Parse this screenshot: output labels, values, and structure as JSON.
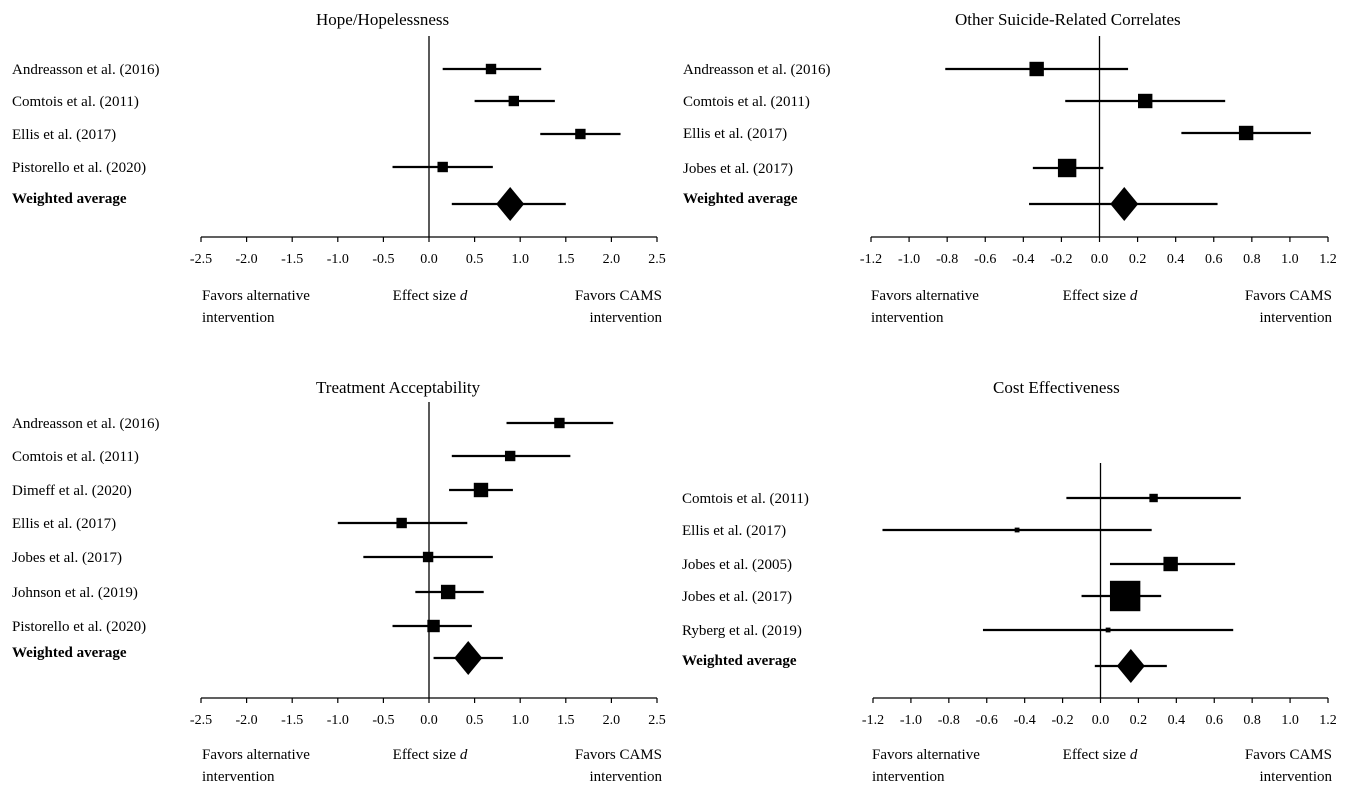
{
  "chart_data": [
    {
      "type": "forest",
      "title": "Hope/Hopelessness",
      "xlim": [
        -2.5,
        2.5
      ],
      "xticks": [
        "-2.5",
        "-2.0",
        "-1.5",
        "-1.0",
        "-0.5",
        "0.0",
        "0.5",
        "1.0",
        "1.5",
        "2.0",
        "2.5"
      ],
      "labels": {
        "left": "Favors alternative intervention",
        "center": "Effect size",
        "center_italic": "d",
        "right": "Favors CAMS intervention"
      },
      "studies": [
        {
          "name": "Andreasson et al. (2016)",
          "d": 0.68,
          "lo": 0.15,
          "hi": 1.23,
          "weight": 2
        },
        {
          "name": "Comtois et al. (2011)",
          "d": 0.93,
          "lo": 0.5,
          "hi": 1.38,
          "weight": 2
        },
        {
          "name": "Ellis et al. (2017)",
          "d": 1.66,
          "lo": 1.22,
          "hi": 2.1,
          "weight": 2
        },
        {
          "name": "Pistorello et al. (2020)",
          "d": 0.15,
          "lo": -0.4,
          "hi": 0.7,
          "weight": 2
        }
      ],
      "pooled": {
        "name": "Weighted average",
        "d": 0.89,
        "lo": 0.25,
        "hi": 1.5
      }
    },
    {
      "type": "forest",
      "title": "Other Suicide-Related Correlates",
      "xlim": [
        -1.2,
        1.2
      ],
      "xticks": [
        "-1.2",
        "-1.0",
        "-0.8",
        "-0.6",
        "-0.4",
        "-0.2",
        "0.0",
        "0.2",
        "0.4",
        "0.6",
        "0.8",
        "1.0",
        "1.2"
      ],
      "labels": {
        "left": "Favors alternative intervention",
        "center": "Effect size",
        "center_italic": "d",
        "right": "Favors CAMS intervention"
      },
      "studies": [
        {
          "name": "Andreasson et al. (2016)",
          "d": -0.33,
          "lo": -0.81,
          "hi": 0.15,
          "weight": 3
        },
        {
          "name": "Comtois et al. (2011)",
          "d": 0.24,
          "lo": -0.18,
          "hi": 0.66,
          "weight": 3
        },
        {
          "name": "Ellis et al. (2017)",
          "d": 0.77,
          "lo": 0.43,
          "hi": 1.11,
          "weight": 3
        },
        {
          "name": "Jobes et al. (2017)",
          "d": -0.17,
          "lo": -0.35,
          "hi": 0.02,
          "weight": 4
        }
      ],
      "pooled": {
        "name": "Weighted average",
        "d": 0.13,
        "lo": -0.37,
        "hi": 0.62
      }
    },
    {
      "type": "forest",
      "title": "Treatment Acceptability",
      "xlim": [
        -2.5,
        2.5
      ],
      "xticks": [
        "-2.5",
        "-2.0",
        "-1.5",
        "-1.0",
        "-0.5",
        "0.0",
        "0.5",
        "1.0",
        "1.5",
        "2.0",
        "2.5"
      ],
      "labels": {
        "left": "Favors alternative intervention",
        "center": "Effect size",
        "center_italic": "d",
        "right": "Favors CAMS intervention"
      },
      "studies": [
        {
          "name": "Andreasson et al. (2016)",
          "d": 1.43,
          "lo": 0.85,
          "hi": 2.02,
          "weight": 2
        },
        {
          "name": "Comtois et al. (2011)",
          "d": 0.89,
          "lo": 0.25,
          "hi": 1.55,
          "weight": 2
        },
        {
          "name": "Dimeff et al. (2020)",
          "d": 0.57,
          "lo": 0.22,
          "hi": 0.92,
          "weight": 3
        },
        {
          "name": "Ellis et al. (2017)",
          "d": -0.3,
          "lo": -1.0,
          "hi": 0.42,
          "weight": 2
        },
        {
          "name": "Jobes et al. (2017)",
          "d": -0.01,
          "lo": -0.72,
          "hi": 0.7,
          "weight": 2
        },
        {
          "name": "Johnson et al. (2019)",
          "d": 0.21,
          "lo": -0.15,
          "hi": 0.6,
          "weight": 3
        },
        {
          "name": "Pistorello et al. (2020)",
          "d": 0.05,
          "lo": -0.4,
          "hi": 0.47,
          "weight": 2.5
        }
      ],
      "pooled": {
        "name": "Weighted average",
        "d": 0.43,
        "lo": 0.05,
        "hi": 0.81
      }
    },
    {
      "type": "forest",
      "title": "Cost Effectiveness",
      "xlim": [
        -1.2,
        1.2
      ],
      "xticks": [
        "-1.2",
        "-1.0",
        "-0.8",
        "-0.6",
        "-0.4",
        "-0.2",
        "0.0",
        "0.2",
        "0.4",
        "0.6",
        "0.8",
        "1.0",
        "1.2"
      ],
      "labels": {
        "left": "Favors alternative intervention",
        "center": "Effect size",
        "center_italic": "d",
        "right": "Favors CAMS intervention"
      },
      "studies": [
        {
          "name": "Comtois et al. (2011)",
          "d": 0.28,
          "lo": -0.18,
          "hi": 0.74,
          "weight": 1.5
        },
        {
          "name": "Ellis et al. (2017)",
          "d": -0.44,
          "lo": -1.15,
          "hi": 0.27,
          "weight": 0.6
        },
        {
          "name": "Jobes et al. (2005)",
          "d": 0.37,
          "lo": 0.05,
          "hi": 0.71,
          "weight": 3
        },
        {
          "name": "Jobes et al. (2017)",
          "d": 0.13,
          "lo": -0.1,
          "hi": 0.32,
          "weight": 7
        },
        {
          "name": "Ryberg et al. (2019)",
          "d": 0.04,
          "lo": -0.62,
          "hi": 0.7,
          "weight": 0.6
        }
      ],
      "pooled": {
        "name": "Weighted average",
        "d": 0.16,
        "lo": -0.03,
        "hi": 0.35
      }
    }
  ]
}
